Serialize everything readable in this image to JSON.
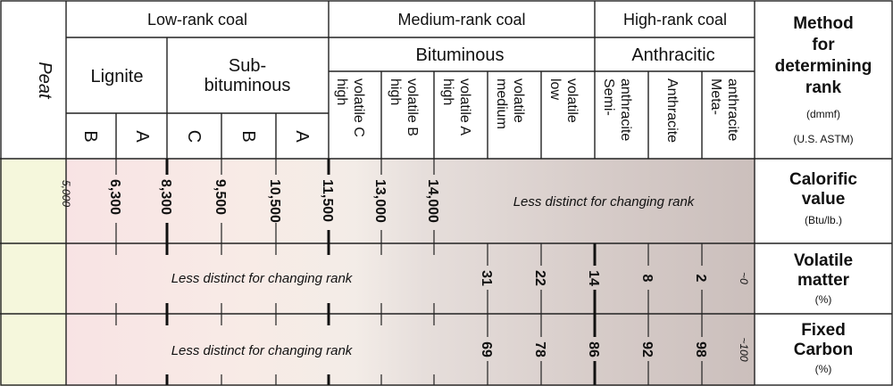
{
  "groups": {
    "low": "Low-rank coal",
    "medium": "Medium-rank coal",
    "high": "High-rank coal"
  },
  "peat": "Peat",
  "subgroups": {
    "lignite": "Lignite",
    "subbituminous_1": "Sub-",
    "subbituminous_2": "bituminous",
    "bituminous": "Bituminous",
    "anthracitic": "Anthracitic"
  },
  "classes": {
    "lignite_b": "B",
    "lignite_a": "A",
    "sub_c": "C",
    "sub_b": "B",
    "sub_a": "A",
    "hvc_1": "high",
    "hvc_2": "volatile C",
    "hvb_1": "high",
    "hvb_2": "volatile B",
    "hva_1": "high",
    "hva_2": "volatile A",
    "mv_1": "medium",
    "mv_2": "volatile",
    "lv_1": "low",
    "lv_2": "volatile",
    "semi_1": "Semi-",
    "semi_2": "anthracite",
    "anth": "Anthracite",
    "meta_1": "Meta-",
    "meta_2": "anthracite"
  },
  "method": {
    "title_1": "Method",
    "title_2": "for",
    "title_3": "determining",
    "title_4": "rank",
    "basis": "(dmmf)",
    "standard": "(U.S. ASTM)"
  },
  "rows": {
    "calorific": {
      "label_1": "Calorific",
      "label_2": "value",
      "unit": "(Btu/lb.)"
    },
    "volatile": {
      "label_1": "Volatile",
      "label_2": "matter",
      "unit": "(%)"
    },
    "fixed": {
      "label_1": "Fixed",
      "label_2": "Carbon",
      "unit": "(%)"
    }
  },
  "calorific_values": {
    "v5000": "5,000",
    "v6300": "6,300",
    "v8300": "8,300",
    "v9500": "9,500",
    "v10500": "10,500",
    "v11500": "11,500",
    "v13000": "13,000",
    "v14000": "14,000"
  },
  "volatile_values": {
    "v31": "31",
    "v22": "22",
    "v14": "14",
    "v8": "8",
    "v2": "2",
    "v0": "~0"
  },
  "fixed_values": {
    "v69": "69",
    "v78": "78",
    "v86": "86",
    "v92": "92",
    "v98": "98",
    "v100": "~100"
  },
  "notes": {
    "calorific": "Less distinct for changing rank",
    "volatile": "Less distinct for changing rank",
    "fixed": "Less distinct for changing rank"
  },
  "colors": {
    "peat": "#f5f7dc",
    "lignite": "#f7e2e2",
    "subbituminous": "#faeee4",
    "bituminous_start": "#e6dedb",
    "bituminous_end": "#d6cbc8",
    "anthracite": "#cfc4c1"
  }
}
